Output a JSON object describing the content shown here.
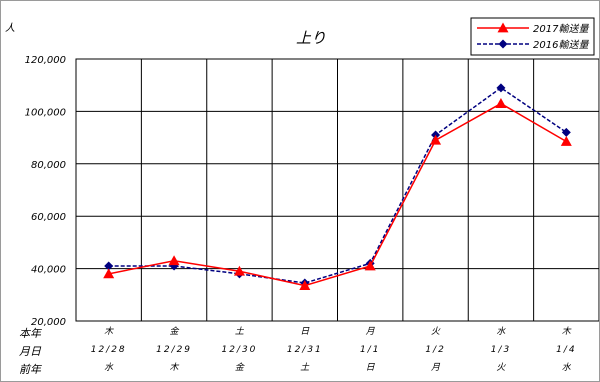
{
  "chart_data": {
    "type": "line",
    "title": "上り",
    "ylabel": "人",
    "ylim": [
      20000,
      120000
    ],
    "yticks": [
      "20,000",
      "40,000",
      "60,000",
      "80,000",
      "100,000",
      "120,000"
    ],
    "ytick_values": [
      20000,
      40000,
      60000,
      80000,
      100000,
      120000
    ],
    "grid": true,
    "legend_position": "top-right",
    "row_labels": [
      "本年",
      "月日",
      "前年"
    ],
    "categories": [
      {
        "weekday_current": "木",
        "date": "12/28",
        "weekday_previous": "水"
      },
      {
        "weekday_current": "金",
        "date": "12/29",
        "weekday_previous": "木"
      },
      {
        "weekday_current": "土",
        "date": "12/30",
        "weekday_previous": "金"
      },
      {
        "weekday_current": "日",
        "date": "12/31",
        "weekday_previous": "土"
      },
      {
        "weekday_current": "月",
        "date": "1/1",
        "weekday_previous": "日"
      },
      {
        "weekday_current": "火",
        "date": "1/2",
        "weekday_previous": "月"
      },
      {
        "weekday_current": "水",
        "date": "1/3",
        "weekday_previous": "火"
      },
      {
        "weekday_current": "木",
        "date": "1/4",
        "weekday_previous": "水"
      }
    ],
    "series": [
      {
        "name": "2017輸送量",
        "color": "#ff0000",
        "marker": "triangle",
        "dash": "solid",
        "values": [
          38000,
          43000,
          39000,
          33500,
          41000,
          89000,
          103000,
          88500
        ]
      },
      {
        "name": "2016輸送量",
        "color": "#000080",
        "marker": "diamond",
        "dash": "dashed",
        "values": [
          41000,
          41000,
          38000,
          34500,
          42000,
          91000,
          109000,
          92000
        ]
      }
    ]
  }
}
